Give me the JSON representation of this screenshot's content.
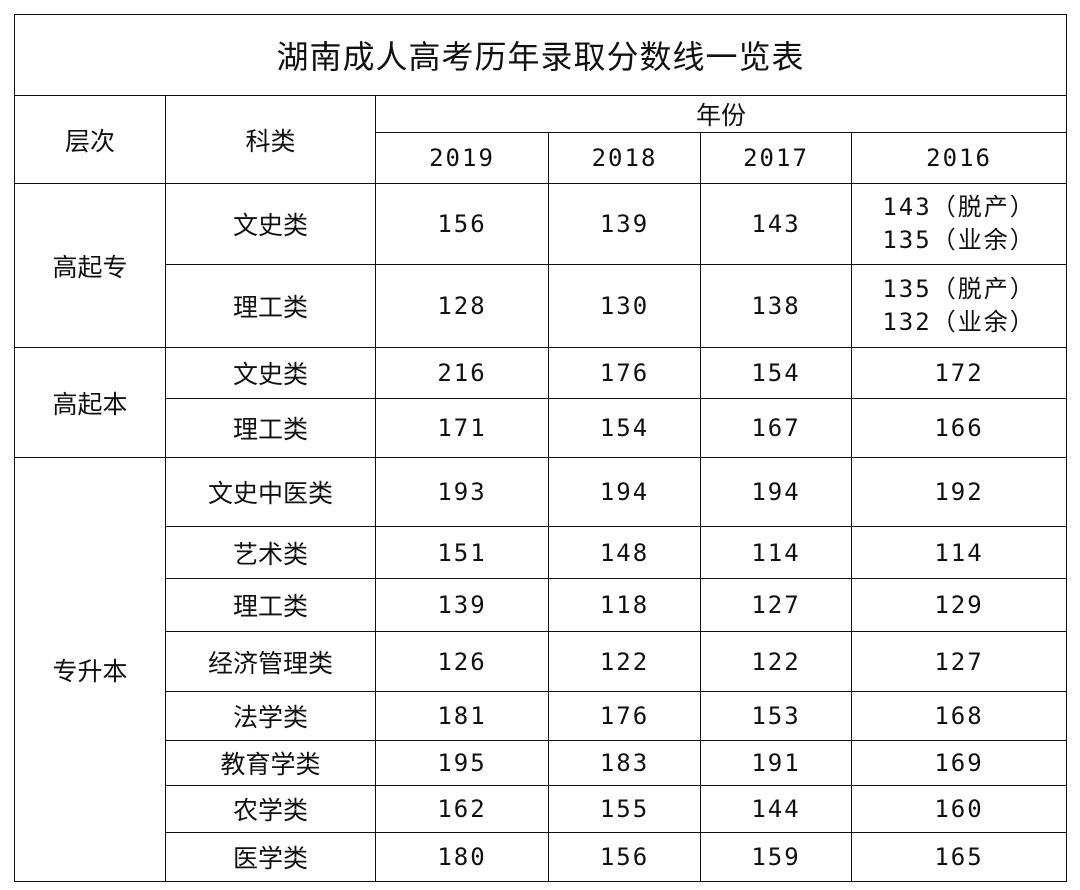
{
  "title": "湖南成人高考历年录取分数线一览表",
  "headers": {
    "level": "层次",
    "category": "科类",
    "year_group": "年份",
    "years": [
      "2019",
      "2018",
      "2017",
      "2016"
    ]
  },
  "groups": [
    {
      "level": "高起专",
      "rows": [
        {
          "category": "文史类",
          "values": [
            "156",
            "139",
            "143",
            [
              "143（脱产）",
              "135（业余）"
            ]
          ]
        },
        {
          "category": "理工类",
          "values": [
            "128",
            "130",
            "138",
            [
              "135（脱产）",
              "132（业余）"
            ]
          ]
        }
      ]
    },
    {
      "level": "高起本",
      "rows": [
        {
          "category": "文史类",
          "values": [
            "216",
            "176",
            "154",
            "172"
          ]
        },
        {
          "category": "理工类",
          "values": [
            "171",
            "154",
            "167",
            "166"
          ]
        }
      ]
    },
    {
      "level": "专升本",
      "rows": [
        {
          "category": "文史中医类",
          "values": [
            "193",
            "194",
            "194",
            "192"
          ]
        },
        {
          "category": "艺术类",
          "values": [
            "151",
            "148",
            "114",
            "114"
          ]
        },
        {
          "category": "理工类",
          "values": [
            "139",
            "118",
            "127",
            "129"
          ]
        },
        {
          "category": "经济管理类",
          "values": [
            "126",
            "122",
            "122",
            "127"
          ]
        },
        {
          "category": "法学类",
          "values": [
            "181",
            "176",
            "153",
            "168"
          ]
        },
        {
          "category": "教育学类",
          "values": [
            "195",
            "183",
            "191",
            "169"
          ]
        },
        {
          "category": "农学类",
          "values": [
            "162",
            "155",
            "144",
            "160"
          ]
        },
        {
          "category": "医学类",
          "values": [
            "180",
            "156",
            "159",
            "165"
          ]
        }
      ]
    }
  ]
}
